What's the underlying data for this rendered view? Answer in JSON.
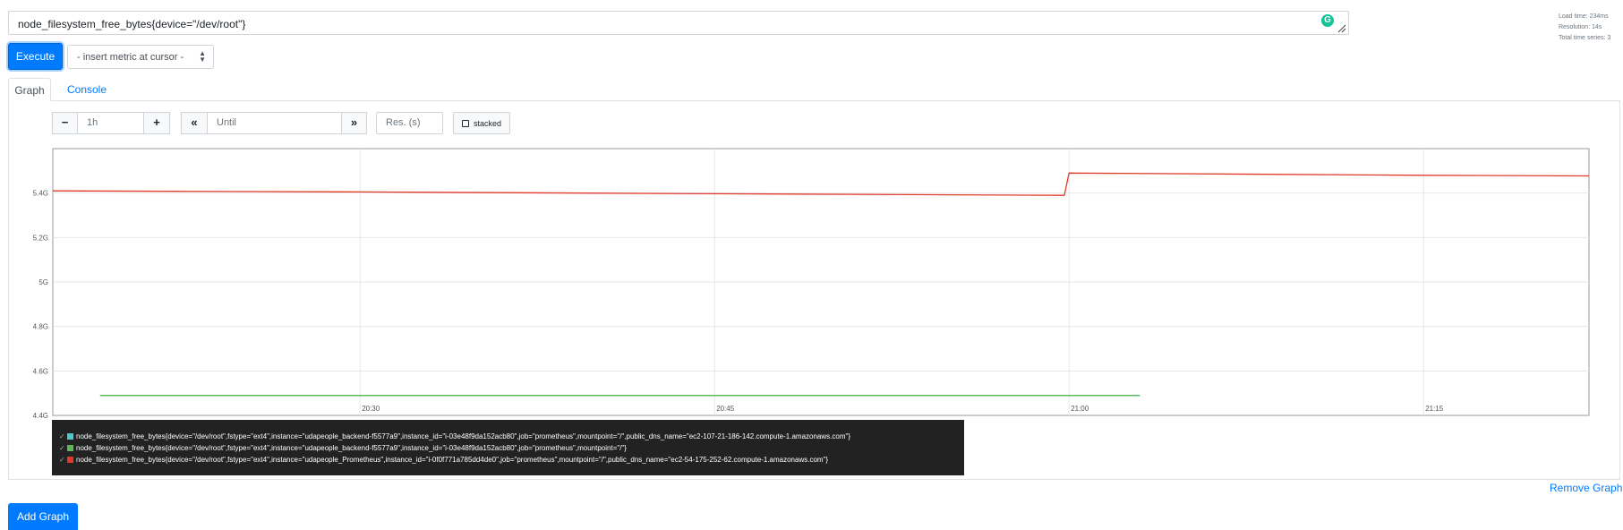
{
  "expression": {
    "value": "node_filesystem_free_bytes{device=\"/dev/root\"}",
    "grammarly_glyph": "G"
  },
  "stats": {
    "load_time": "Load time: 234ms",
    "resolution": "Resolution: 14s",
    "total_series": "Total time series: 3"
  },
  "toolbar": {
    "execute_label": "Execute",
    "metric_select_label": "- insert metric at cursor -"
  },
  "tabs": [
    {
      "label": "Graph",
      "active": true
    },
    {
      "label": "Console",
      "active": false
    }
  ],
  "graph_controls": {
    "minus_label": "−",
    "range_value": "1h",
    "plus_label": "+",
    "back_label": "«",
    "until_placeholder": "Until",
    "forward_label": "»",
    "resolution_placeholder": "Res. (s)",
    "stacked_label": "stacked"
  },
  "chart_data": {
    "type": "line",
    "x_type": "time",
    "xlim": [
      "20:17",
      "21:22"
    ],
    "x_ticks": [
      "20:30",
      "20:45",
      "21:00",
      "21:15"
    ],
    "ylim": [
      4.4,
      5.6
    ],
    "y_unit": "G",
    "y_ticks": [
      "4.4G",
      "4.6G",
      "4.8G",
      "5G",
      "5.2G",
      "5.4G"
    ],
    "grid": true,
    "legend_position": "below",
    "series": [
      {
        "name": "node_filesystem_free_bytes{device=\"/dev/root\",fstype=\"ext4\",instance=\"udapeople_backend-f5577a9\",instance_id=\"i-03e48f9da152acb80\",job=\"prometheus\",mountpoint=\"/\",public_dns_name=\"ec2-107-21-186-142.compute-1.amazonaws.com\"}",
        "color": "#4dc9c9",
        "points": [
          [
            "20:19",
            4.49
          ],
          [
            "21:03",
            4.49
          ]
        ]
      },
      {
        "name": "node_filesystem_free_bytes{device=\"/dev/root\",fstype=\"ext4\",instance=\"udapeople_backend-f5577a9\",instance_id=\"i-03e48f9da152acb80\",job=\"prometheus\",mountpoint=\"/\"}",
        "color": "#5cb85c",
        "points": [
          [
            "20:19",
            4.49
          ],
          [
            "21:03",
            4.49
          ]
        ]
      },
      {
        "name": "node_filesystem_free_bytes{device=\"/dev/root\",fstype=\"ext4\",instance=\"udapeople_Prometheus\",instance_id=\"i-0f0f771a785dd4de0\",job=\"prometheus\",mountpoint=\"/\",public_dns_name=\"ec2-54-175-252-62.compute-1.amazonaws.com\"}",
        "color": "#e0392b",
        "points": [
          [
            "20:17",
            5.41
          ],
          [
            "20:30",
            5.405
          ],
          [
            "20:45",
            5.397
          ],
          [
            "20:59.8",
            5.39
          ],
          [
            "21:00",
            5.49
          ],
          [
            "21:15",
            5.48
          ],
          [
            "21:22",
            5.477
          ]
        ]
      }
    ]
  },
  "links": {
    "remove_graph": "Remove Graph"
  },
  "footer": {
    "add_graph_label": "Add Graph"
  }
}
